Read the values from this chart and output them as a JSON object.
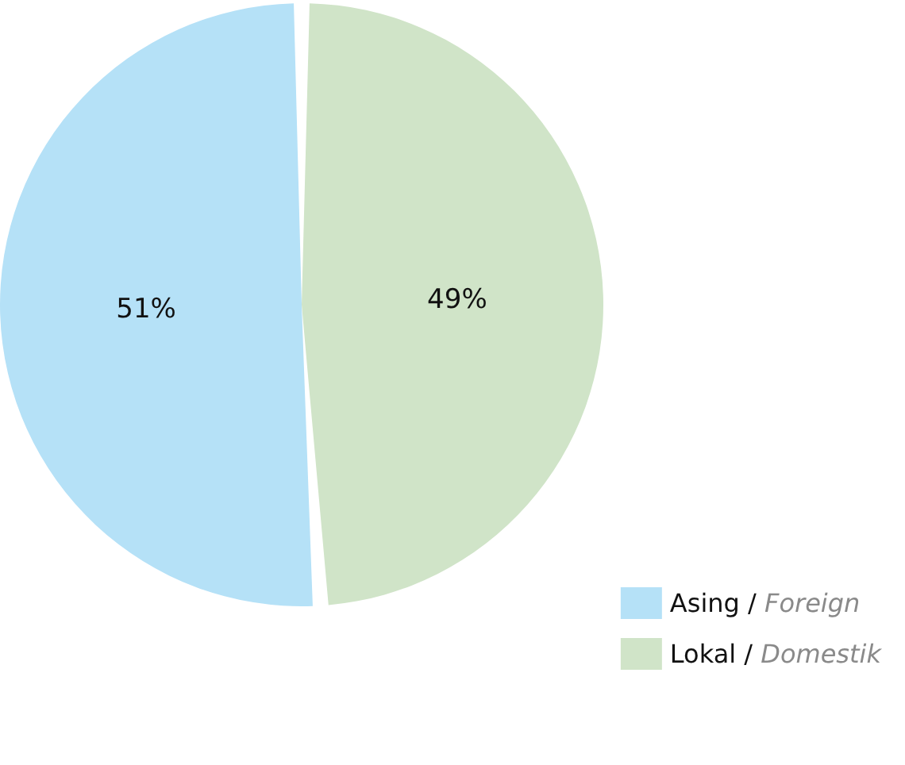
{
  "chart_data": {
    "type": "pie",
    "categories": [
      "Asing / Foreign",
      "Lokal / Domestik"
    ],
    "values": [
      51,
      49
    ],
    "colors": [
      "#b5e1f7",
      "#d0e4c8"
    ],
    "value_labels": [
      "51%",
      "49%"
    ],
    "legend": "bottom right"
  }
}
